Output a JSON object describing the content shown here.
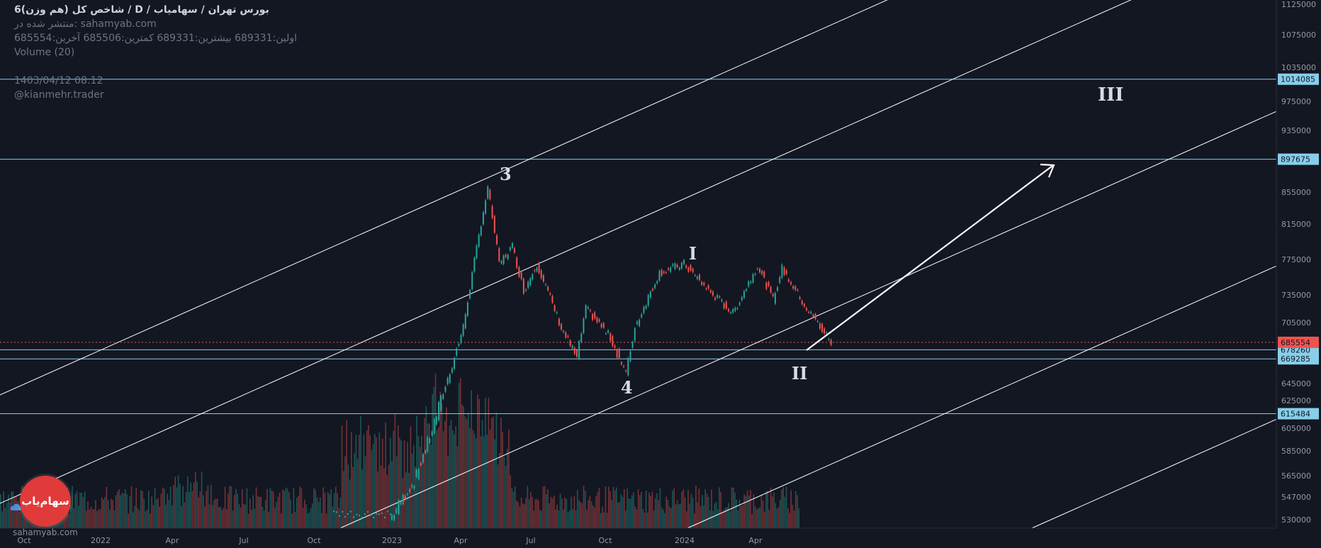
{
  "header": {
    "title": "شاخص کل (هم وزن)6 / D / بورس تهران / سهامیاب",
    "published": "منتشر شده در: sahamyab.com",
    "ohlc": "اولین:689331  بیشترین:689331  کمترین:685506  آخرین:685554",
    "volume": "Volume (20)",
    "date": "1403/04/12 08:12",
    "author": "@kianmehr.trader"
  },
  "watermark": "sahamyab.com",
  "logo": "سهام‌یاب",
  "chart_data": {
    "type": "line",
    "title": "شاخص کل (هم وزن)",
    "y_ticks": [
      1125000,
      1075000,
      1035000,
      975000,
      935000,
      855000,
      815000,
      775000,
      735000,
      705000,
      645000,
      625000,
      605000,
      585000,
      565000,
      547000,
      530000
    ],
    "y_tick_labels": [
      "1125000",
      "1075000",
      "1035000",
      "975000",
      "935000",
      "855000",
      "815000",
      "775000",
      "735000",
      "705000",
      "645000",
      "625000",
      "605000",
      "585000",
      "565000",
      "547000",
      "530000"
    ],
    "x_tick_labels": [
      "Oct",
      "2022",
      "Apr",
      "Jul",
      "Oct",
      "2023",
      "Apr",
      "Jul",
      "Oct",
      "2024",
      "Apr"
    ],
    "horizontal_levels": [
      {
        "value": 1014085,
        "label": "1014085",
        "color": "#87ceeb"
      },
      {
        "value": 897675,
        "label": "897675",
        "color": "#87ceeb"
      },
      {
        "value": 678260,
        "label": "678260",
        "color": "#87ceeb"
      },
      {
        "value": 669285,
        "label": "669285",
        "color": "#87ceeb"
      },
      {
        "value": 615484,
        "label": "615484",
        "color": "#87ceeb"
      }
    ],
    "last_price": {
      "value": 685554,
      "label": "685554",
      "color": "#ef5350"
    },
    "wave_labels": [
      "3",
      "4",
      "I",
      "II",
      "III"
    ],
    "series": [
      {
        "x": [
          "2023-01",
          "2023-02",
          "2023-03",
          "2023-04",
          "2023-05",
          "2023-05-15",
          "2023-06",
          "2023-06-15",
          "2023-07",
          "2023-08",
          "2023-08-20",
          "2023-09",
          "2023-10",
          "2023-10-20",
          "2023-11",
          "2023-12",
          "2024-01",
          "2024-02",
          "2024-03",
          "2024-04",
          "2024-04-20",
          "2024-05",
          "2024-06",
          "2024-07"
        ],
        "values": [
          530000,
          560000,
          620000,
          700000,
          860000,
          770000,
          790000,
          740000,
          770000,
          700000,
          670000,
          720000,
          690000,
          655000,
          700000,
          760000,
          770000,
          740000,
          715000,
          768000,
          730000,
          765000,
          720000,
          685554
        ]
      }
    ],
    "colors": {
      "up": "#26a69a",
      "down": "#ef5350",
      "trend_lines": "#ffffff",
      "level_lines": "#87ceeb"
    }
  }
}
